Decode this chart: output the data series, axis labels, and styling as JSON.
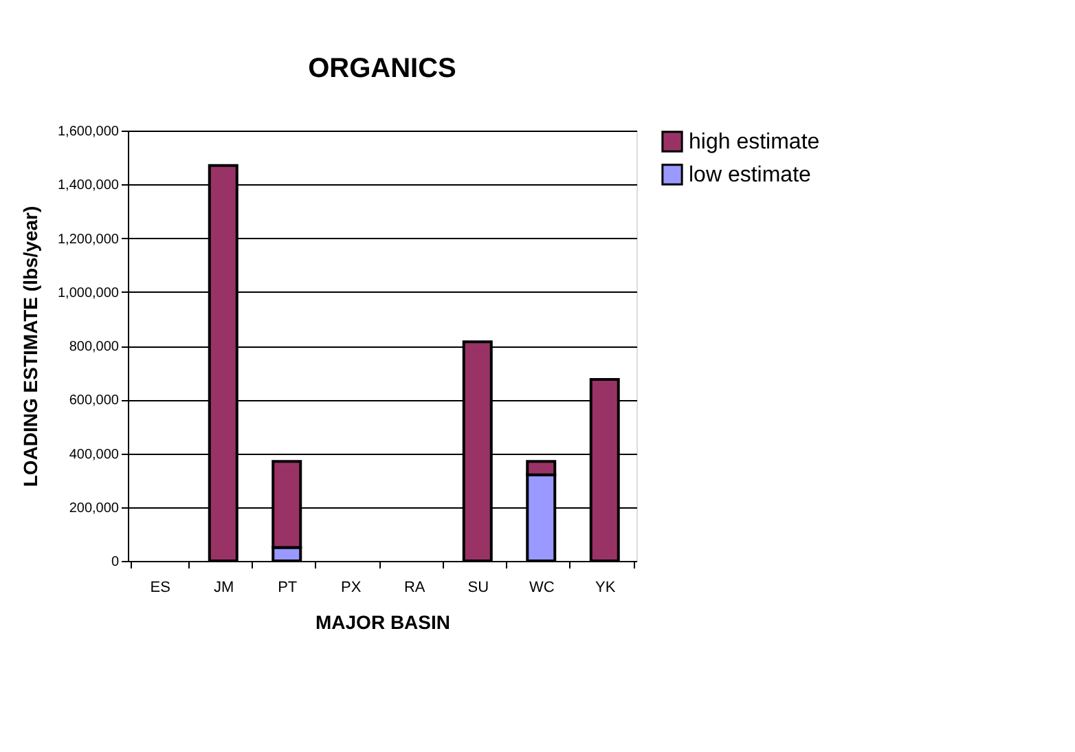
{
  "chart_data": {
    "type": "bar",
    "title": "ORGANICS",
    "xlabel": "MAJOR BASIN",
    "ylabel": "LOADING ESTIMATE (lbs/year)",
    "categories": [
      "ES",
      "JM",
      "PT",
      "PX",
      "RA",
      "SU",
      "WC",
      "YK"
    ],
    "series": [
      {
        "name": "low estimate",
        "color": "#9999ff",
        "values": [
          null,
          null,
          50000,
          null,
          null,
          null,
          320000,
          null
        ]
      },
      {
        "name": "high estimate",
        "color": "#993366",
        "values": [
          null,
          1470000,
          320000,
          null,
          null,
          815000,
          50000,
          675000
        ]
      }
    ],
    "stacked": true,
    "ylim": [
      0,
      1600000
    ],
    "yticks": [
      0,
      {
        "value": 200000,
        "label": "200,000"
      },
      {
        "value": 400000,
        "label": "400,000"
      },
      {
        "value": 600000,
        "label": "600,000"
      },
      {
        "value": 800000,
        "label": "800,000"
      },
      {
        "value": 1000000,
        "label": "1,000,000"
      },
      {
        "value": 1200000,
        "label": "1,200,000"
      },
      {
        "value": 1400000,
        "label": "1,400,000"
      },
      {
        "value": 1600000,
        "label": "1,600,000"
      }
    ],
    "grid": "y",
    "legend": "right"
  }
}
